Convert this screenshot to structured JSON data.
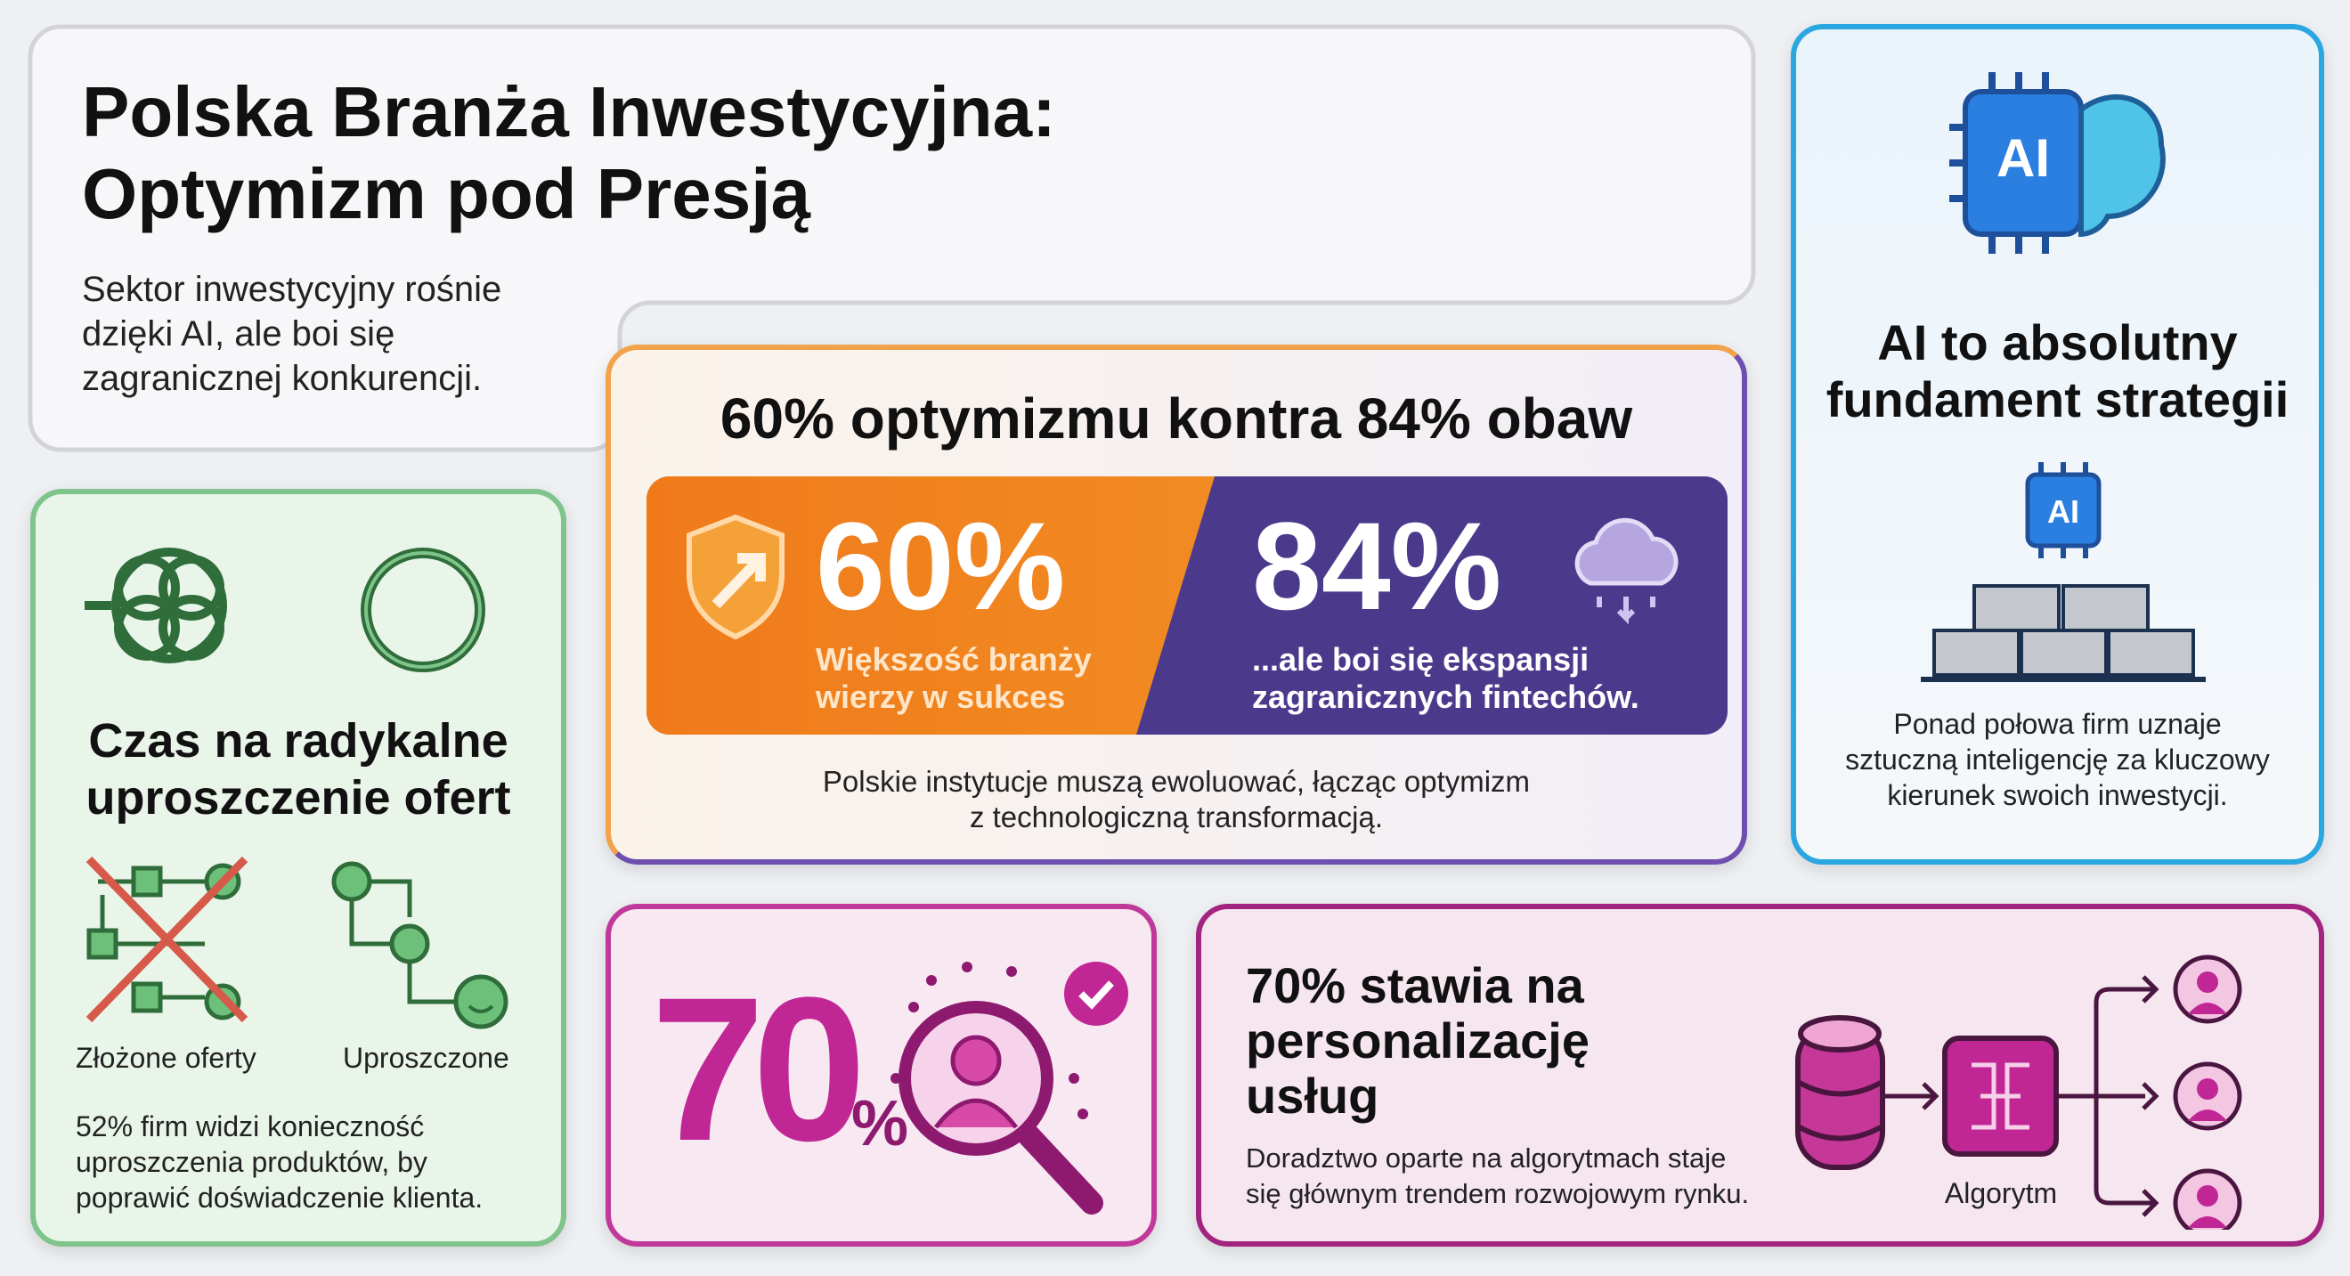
{
  "header": {
    "title_line1": "Polska Branża Inwestycyjna:",
    "title_line2": "Optymizm pod Presją",
    "subtitle_line1": "Sektor inwestycyjny rośnie",
    "subtitle_line2": "dzięki AI, ale boi się",
    "subtitle_line3": "zagranicznej konkurencji."
  },
  "compare": {
    "title": "60% optymizmu kontra 84% obaw",
    "left_value": "60%",
    "left_line1": "Większość branży",
    "left_line2": "wierzy w sukces",
    "right_value": "84%",
    "right_line1": "...ale boi się ekspansji",
    "right_line2": "zagranicznych fintechów.",
    "note_line1": "Polskie instytucje muszą ewoluować, łącząc optymizm",
    "note_line2": "z technologiczną transformacją.",
    "colors": {
      "orange": "#f07a1a",
      "purple": "#4b3a8c"
    }
  },
  "ai": {
    "chip_label": "AI",
    "chip_label_small": "AI",
    "title_line1": "AI to absolutny",
    "title_line2": "fundament strategii",
    "text_line1": "Ponad połowa firm uznaje",
    "text_line2": "sztuczną inteligencję za kluczowy",
    "text_line3": "kierunek swoich inwestycji.",
    "color": "#1b8fd6"
  },
  "simplify": {
    "title_line1": "Czas na radykalne",
    "title_line2": "uproszczenie ofert",
    "label_complex": "Złożone oferty",
    "label_simple": "Uproszczone",
    "text_line1": "52% firm widzi konieczność",
    "text_line2": "uproszczenia produktów, by",
    "text_line3": "poprawić doświadczenie klienta.",
    "color": "#3c8c48"
  },
  "stat70": {
    "value": "70",
    "percent": "%",
    "color": "#b8208f"
  },
  "personal": {
    "title_line1": "70% stawia na",
    "title_line2": "personalizację",
    "title_line3": "usług",
    "text_line1": "Doradztwo oparte na algorytmach staje",
    "text_line2": "się głównym trendem rozwojowym rynku.",
    "algo_label": "Algorytm",
    "color": "#a3247f"
  }
}
